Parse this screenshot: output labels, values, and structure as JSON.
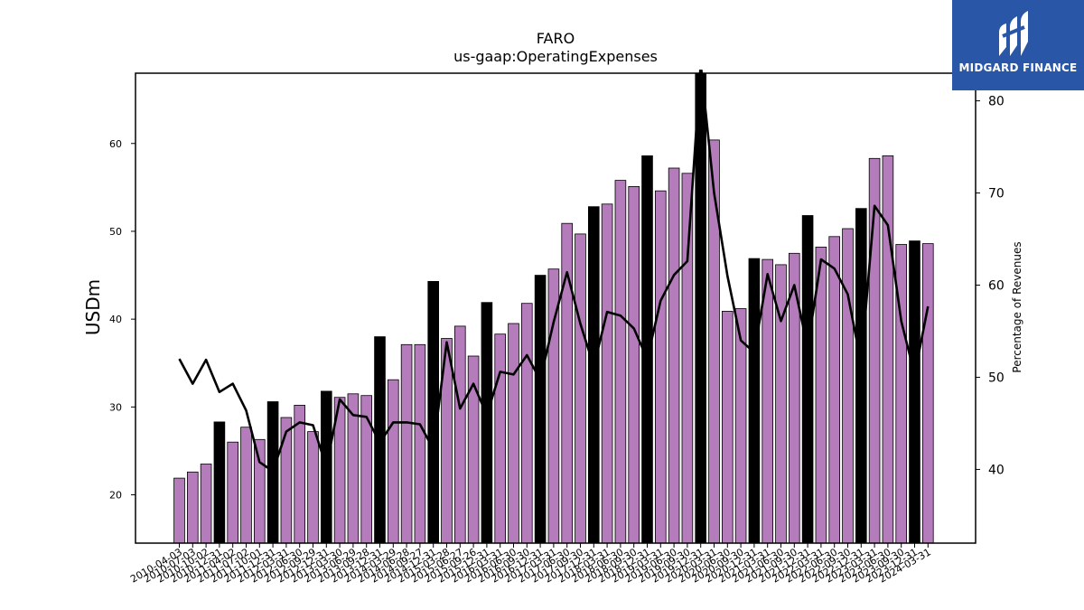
{
  "chart_data": {
    "type": "bar",
    "title": "FARO",
    "subtitle": "us-gaap:OperatingExpenses",
    "ylabel": "USDm",
    "y2label": "Percentage of Revenues",
    "ylim": [
      14.5,
      68
    ],
    "y2lim": [
      32,
      83
    ],
    "yticks": [
      20,
      30,
      40,
      50,
      60
    ],
    "y2ticks": [
      40,
      50,
      60,
      70,
      80
    ],
    "bar_color": "#b57cbb",
    "highlight_color": "#000000",
    "line_color": "#000000",
    "categories": [
      "2010-04-03",
      "2010-07-03",
      "2010-10-02",
      "2010-12-31",
      "2011-04-02",
      "2011-07-02",
      "2011-10-01",
      "2011-12-31",
      "2012-03-31",
      "2012-06-30",
      "2012-09-29",
      "2012-12-31",
      "2013-03-30",
      "2013-06-29",
      "2013-09-28",
      "2013-12-31",
      "2014-03-29",
      "2014-06-28",
      "2014-09-27",
      "2014-12-31",
      "2015-03-28",
      "2015-06-27",
      "2015-09-26",
      "2015-12-31",
      "2016-03-31",
      "2016-06-30",
      "2016-09-30",
      "2016-12-31",
      "2017-03-31",
      "2017-06-30",
      "2017-09-30",
      "2017-12-31",
      "2018-03-31",
      "2018-06-30",
      "2018-09-30",
      "2018-12-31",
      "2019-03-31",
      "2019-06-30",
      "2019-09-30",
      "2019-12-31",
      "2020-03-31",
      "2020-06-30",
      "2020-09-30",
      "2020-12-31",
      "2021-03-31",
      "2021-06-30",
      "2021-09-30",
      "2021-12-31",
      "2022-03-31",
      "2022-06-30",
      "2022-09-30",
      "2022-12-31",
      "2023-03-31",
      "2023-06-30",
      "2023-09-30",
      "2023-12-31",
      "2024-03-31"
    ],
    "values": [
      21.9,
      22.6,
      23.5,
      28.3,
      26.0,
      27.7,
      26.3,
      30.6,
      28.8,
      30.2,
      27.2,
      31.8,
      31.1,
      31.5,
      31.3,
      38.0,
      33.1,
      37.1,
      37.1,
      44.3,
      37.8,
      39.2,
      35.8,
      41.9,
      38.3,
      39.5,
      41.8,
      45.0,
      45.7,
      50.9,
      49.7,
      52.8,
      53.1,
      55.8,
      55.1,
      58.6,
      54.6,
      57.2,
      56.6,
      68.0,
      60.4,
      40.9,
      41.2,
      46.9,
      46.8,
      46.2,
      47.5,
      51.8,
      48.2,
      49.4,
      50.3,
      52.6,
      58.3,
      58.6,
      48.5,
      48.9,
      48.6
    ],
    "highlighted": [
      false,
      false,
      false,
      true,
      false,
      false,
      false,
      true,
      false,
      false,
      false,
      true,
      false,
      false,
      false,
      true,
      false,
      false,
      false,
      true,
      false,
      false,
      false,
      true,
      false,
      false,
      false,
      true,
      false,
      false,
      false,
      true,
      false,
      false,
      false,
      true,
      false,
      false,
      false,
      true,
      false,
      false,
      false,
      true,
      false,
      false,
      false,
      true,
      false,
      false,
      false,
      true,
      false,
      false,
      false,
      true,
      false
    ],
    "pct_of_revenue": [
      52.0,
      49.3,
      51.9,
      48.4,
      49.3,
      46.4,
      40.8,
      39.8,
      44.1,
      45.1,
      44.8,
      40.3,
      47.6,
      45.9,
      45.7,
      42.9,
      45.1,
      45.1,
      44.9,
      42.2,
      53.8,
      46.6,
      49.3,
      45.9,
      50.6,
      50.3,
      52.4,
      49.7,
      56.0,
      61.4,
      55.8,
      51.2,
      57.1,
      56.7,
      55.3,
      52.0,
      58.3,
      61.1,
      62.6,
      84.0,
      70.0,
      61.0,
      54.0,
      52.7,
      61.2,
      56.1,
      60.0,
      53.2,
      62.8,
      61.8,
      59.0,
      51.5,
      68.6,
      66.5,
      56.1,
      50.3,
      57.7
    ]
  },
  "logo": {
    "text": "MIDGARD FINANCE"
  }
}
